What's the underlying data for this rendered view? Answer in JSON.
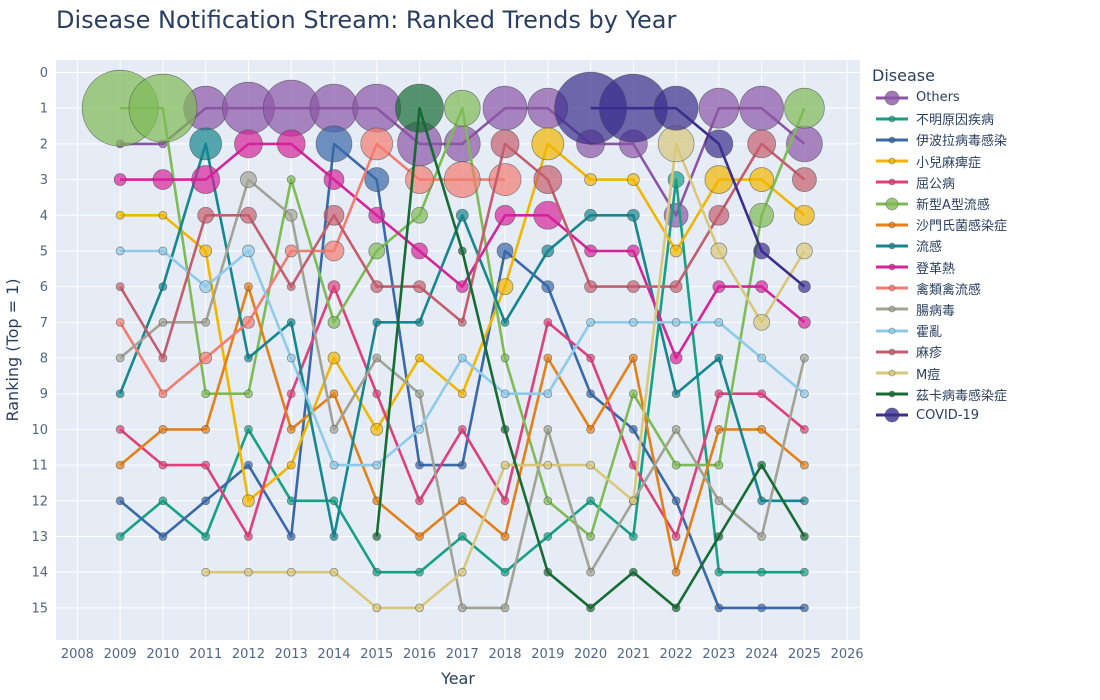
{
  "chart_data": {
    "type": "line",
    "title": "Disease Notification Stream: Ranked Trends by Year",
    "xlabel": "Year",
    "ylabel": "Ranking (Top = 1)",
    "xlim": [
      2007.5,
      2026.3
    ],
    "ylim": [
      15.9,
      -0.35
    ],
    "x_ticks": [
      2008,
      2009,
      2010,
      2011,
      2012,
      2013,
      2014,
      2015,
      2016,
      2017,
      2018,
      2019,
      2020,
      2021,
      2022,
      2023,
      2024,
      2025,
      2026
    ],
    "y_ticks": [
      0,
      1,
      2,
      3,
      4,
      5,
      6,
      7,
      8,
      9,
      10,
      11,
      12,
      13,
      14,
      15
    ],
    "y_reversed": true,
    "grid": true,
    "legend_title": "Disease",
    "legend_position": "right",
    "background_color": "#e5ecf6",
    "series": [
      {
        "name": "Others",
        "color": "#8c56a6",
        "x": [
          2009,
          2010,
          2011,
          2012,
          2013,
          2014,
          2015,
          2016,
          2017,
          2018,
          2019,
          2020,
          2021,
          2022,
          2023,
          2024,
          2025
        ],
        "y": [
          2,
          2,
          1,
          1,
          1,
          1,
          1,
          2,
          2,
          1,
          1,
          2,
          2,
          4,
          1,
          1,
          2
        ],
        "s": [
          4,
          4,
          22,
          26,
          28,
          24,
          24,
          22,
          18,
          22,
          20,
          14,
          14,
          12,
          20,
          22,
          18
        ]
      },
      {
        "name": "不明原因疾病",
        "color": "#17a084",
        "x": [
          2009,
          2010,
          2011,
          2012,
          2013,
          2014,
          2015,
          2016,
          2017,
          2018,
          2019,
          2020,
          2021,
          2022,
          2023,
          2024,
          2025
        ],
        "y": [
          13,
          12,
          13,
          10,
          12,
          12,
          14,
          14,
          13,
          14,
          13,
          12,
          13,
          3,
          14,
          14,
          14
        ],
        "s": [
          4,
          4,
          4,
          4,
          4,
          4,
          4,
          4,
          4,
          4,
          4,
          4,
          4,
          8,
          4,
          4,
          4
        ]
      },
      {
        "name": "伊波拉病毒感染",
        "color": "#3a68a8",
        "x": [
          2009,
          2010,
          2011,
          2012,
          2013,
          2014,
          2015,
          2016,
          2017,
          2018,
          2019,
          2020,
          2021,
          2022,
          2023,
          2024,
          2025
        ],
        "y": [
          12,
          13,
          12,
          11,
          13,
          2,
          3,
          11,
          11,
          5,
          6,
          9,
          10,
          12,
          15,
          15,
          15
        ],
        "s": [
          4,
          4,
          4,
          4,
          4,
          18,
          12,
          4,
          4,
          8,
          6,
          4,
          4,
          4,
          4,
          4,
          4
        ]
      },
      {
        "name": "小兒麻痺症",
        "color": "#f2b600",
        "x": [
          2009,
          2010,
          2011,
          2012,
          2013,
          2014,
          2015,
          2016,
          2017,
          2018,
          2019,
          2020,
          2021,
          2022,
          2023,
          2024,
          2025
        ],
        "y": [
          4,
          4,
          5,
          12,
          11,
          8,
          10,
          8,
          9,
          6,
          2,
          3,
          3,
          5,
          3,
          3,
          4
        ],
        "s": [
          4,
          4,
          6,
          6,
          4,
          6,
          6,
          4,
          4,
          8,
          16,
          6,
          6,
          6,
          14,
          12,
          10
        ]
      },
      {
        "name": "屈公病",
        "color": "#e0407a",
        "x": [
          2009,
          2010,
          2011,
          2012,
          2013,
          2014,
          2015,
          2016,
          2017,
          2018,
          2019,
          2020,
          2021,
          2022,
          2023,
          2024,
          2025
        ],
        "y": [
          10,
          11,
          11,
          13,
          9,
          6,
          9,
          12,
          10,
          12,
          7,
          8,
          11,
          13,
          9,
          9,
          10
        ],
        "s": [
          4,
          4,
          4,
          4,
          4,
          6,
          4,
          4,
          4,
          4,
          4,
          4,
          4,
          4,
          4,
          4,
          4
        ]
      },
      {
        "name": "新型A型流感",
        "color": "#7fbb55",
        "x": [
          2009,
          2010,
          2011,
          2012,
          2013,
          2014,
          2015,
          2016,
          2017,
          2018,
          2019,
          2020,
          2021,
          2022,
          2023,
          2024,
          2025
        ],
        "y": [
          1,
          1,
          9,
          9,
          3,
          7,
          5,
          4,
          1,
          8,
          12,
          13,
          9,
          11,
          11,
          4,
          1
        ],
        "s": [
          38,
          34,
          4,
          4,
          4,
          6,
          8,
          8,
          18,
          4,
          4,
          4,
          4,
          4,
          4,
          12,
          20
        ]
      },
      {
        "name": "沙門氏菌感染症",
        "color": "#e58019",
        "x": [
          2009,
          2010,
          2011,
          2012,
          2013,
          2014,
          2015,
          2016,
          2017,
          2018,
          2019,
          2020,
          2021,
          2022,
          2023,
          2024,
          2025
        ],
        "y": [
          11,
          10,
          10,
          6,
          10,
          9,
          12,
          13,
          12,
          13,
          8,
          10,
          8,
          14,
          10,
          10,
          11
        ],
        "s": [
          4,
          4,
          4,
          4,
          4,
          4,
          4,
          4,
          4,
          4,
          4,
          4,
          4,
          4,
          4,
          4,
          4
        ]
      },
      {
        "name": "流感",
        "color": "#16868f",
        "x": [
          2009,
          2010,
          2011,
          2012,
          2013,
          2014,
          2015,
          2016,
          2017,
          2018,
          2019,
          2020,
          2021,
          2022,
          2023,
          2024,
          2025
        ],
        "y": [
          9,
          6,
          2,
          8,
          7,
          13,
          7,
          7,
          4,
          7,
          5,
          4,
          4,
          9,
          8,
          12,
          12
        ],
        "s": [
          4,
          4,
          16,
          4,
          4,
          4,
          4,
          4,
          6,
          4,
          6,
          6,
          6,
          4,
          4,
          4,
          4
        ]
      },
      {
        "name": "登革熱",
        "color": "#d6249a",
        "x": [
          2009,
          2010,
          2011,
          2012,
          2013,
          2014,
          2015,
          2016,
          2017,
          2018,
          2019,
          2020,
          2021,
          2022,
          2023,
          2024,
          2025
        ],
        "y": [
          3,
          3,
          3,
          2,
          2,
          3,
          4,
          5,
          6,
          4,
          4,
          5,
          5,
          8,
          6,
          6,
          7
        ],
        "s": [
          6,
          10,
          14,
          14,
          14,
          10,
          8,
          8,
          6,
          10,
          14,
          6,
          6,
          6,
          6,
          6,
          6
        ]
      },
      {
        "name": "禽類禽流感",
        "color": "#f47c70",
        "x": [
          2009,
          2010,
          2011,
          2012,
          2013,
          2014,
          2015,
          2016,
          2017,
          2018
        ],
        "y": [
          7,
          9,
          8,
          7,
          5,
          5,
          2,
          3,
          3,
          3
        ],
        "s": [
          4,
          4,
          6,
          6,
          6,
          10,
          16,
          14,
          18,
          16
        ]
      },
      {
        "name": "腸病毒",
        "color": "#a2a395",
        "x": [
          2009,
          2010,
          2011,
          2012,
          2013,
          2014,
          2015,
          2016,
          2017,
          2018,
          2019,
          2020,
          2021,
          2022,
          2023,
          2024,
          2025
        ],
        "y": [
          8,
          7,
          7,
          3,
          4,
          10,
          8,
          9,
          15,
          15,
          10,
          14,
          12,
          10,
          12,
          13,
          8
        ],
        "s": [
          4,
          4,
          4,
          8,
          6,
          4,
          4,
          4,
          4,
          4,
          4,
          4,
          4,
          4,
          4,
          4,
          4
        ]
      },
      {
        "name": "霍亂",
        "color": "#8fcbe8",
        "x": [
          2009,
          2010,
          2011,
          2012,
          2013,
          2014,
          2015,
          2016,
          2017,
          2018,
          2019,
          2020,
          2021,
          2022,
          2023,
          2024,
          2025
        ],
        "y": [
          5,
          5,
          6,
          5,
          8,
          11,
          11,
          10,
          8,
          9,
          9,
          7,
          7,
          7,
          7,
          8,
          9
        ],
        "s": [
          4,
          4,
          6,
          6,
          4,
          4,
          4,
          4,
          4,
          4,
          4,
          4,
          4,
          4,
          4,
          4,
          4
        ]
      },
      {
        "name": "麻疹",
        "color": "#c45e6e",
        "x": [
          2009,
          2010,
          2011,
          2012,
          2013,
          2014,
          2015,
          2016,
          2017,
          2018,
          2019,
          2020,
          2021,
          2022,
          2023,
          2024,
          2025
        ],
        "y": [
          6,
          8,
          4,
          4,
          6,
          4,
          6,
          6,
          7,
          2,
          3,
          6,
          6,
          6,
          4,
          2,
          3
        ],
        "s": [
          4,
          4,
          8,
          8,
          4,
          10,
          6,
          6,
          4,
          14,
          14,
          6,
          6,
          6,
          10,
          14,
          12
        ]
      },
      {
        "name": "M痘",
        "color": "#d9c87a",
        "x": [
          2011,
          2012,
          2013,
          2014,
          2015,
          2016,
          2017,
          2018,
          2019,
          2020,
          2021,
          2022,
          2023,
          2024,
          2025
        ],
        "y": [
          14,
          14,
          14,
          14,
          15,
          15,
          14,
          11,
          11,
          11,
          12,
          2,
          5,
          7,
          5
        ],
        "s": [
          4,
          4,
          4,
          4,
          4,
          4,
          4,
          4,
          4,
          4,
          4,
          18,
          8,
          8,
          8
        ]
      },
      {
        "name": "茲卡病毒感染症",
        "color": "#176b34",
        "x": [
          2015,
          2016,
          2017,
          2018,
          2019,
          2020,
          2021,
          2022,
          2023,
          2024,
          2025
        ],
        "y": [
          13,
          1,
          5,
          10,
          14,
          15,
          14,
          15,
          13,
          11,
          13
        ],
        "s": [
          4,
          24,
          4,
          4,
          4,
          4,
          4,
          4,
          4,
          4,
          4
        ]
      },
      {
        "name": "COVID-19",
        "color": "#3b2e8c",
        "x": [
          2020,
          2021,
          2022,
          2023,
          2024,
          2025
        ],
        "y": [
          1,
          1,
          1,
          2,
          5,
          6
        ],
        "s": [
          36,
          34,
          22,
          14,
          8,
          6
        ]
      }
    ]
  }
}
